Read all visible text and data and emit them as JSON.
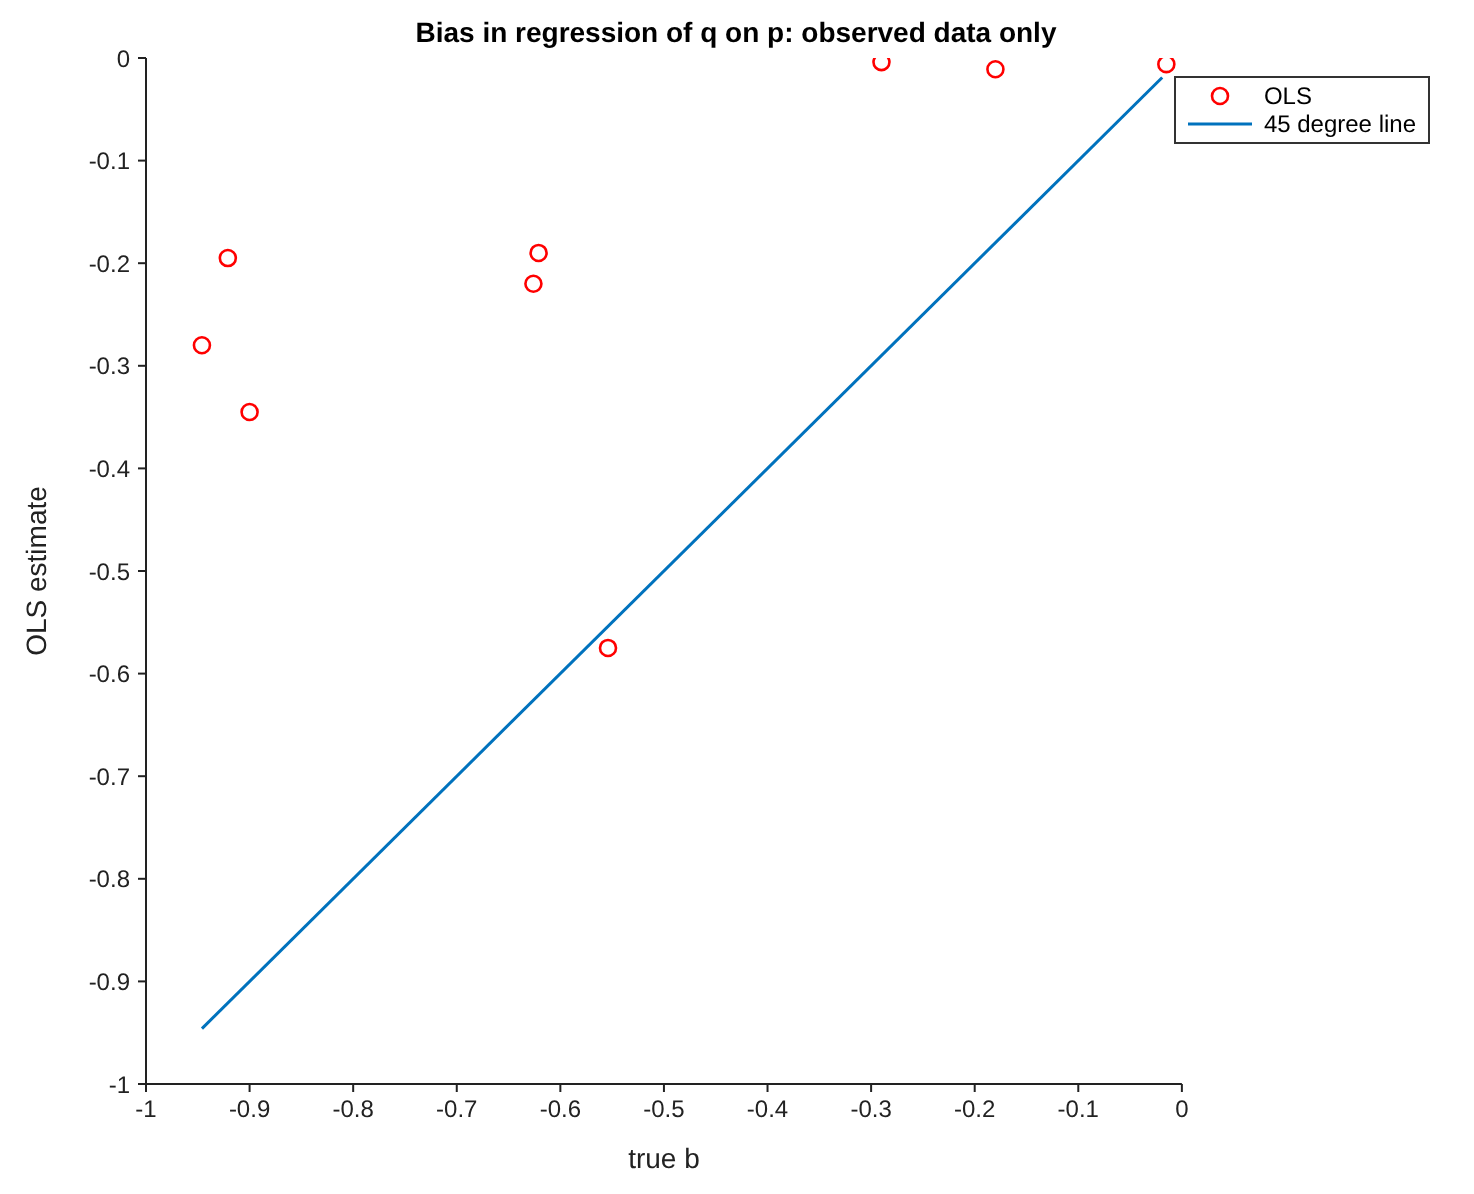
{
  "chart_data": {
    "type": "scatter",
    "title": "Bias in regression of q on p: observed data only",
    "xlabel": "true b",
    "ylabel": "OLS estimate",
    "xlim": [
      -1,
      0
    ],
    "xticks": [
      -1,
      -0.9,
      -0.8,
      -0.7,
      -0.6,
      -0.5,
      -0.4,
      -0.3,
      -0.2,
      -0.1,
      0
    ],
    "ylim": [
      -1,
      0
    ],
    "yticks": [
      -1,
      -0.9,
      -0.8,
      -0.7,
      -0.6,
      -0.5,
      -0.4,
      -0.3,
      -0.2,
      -0.1,
      0
    ],
    "grid": false,
    "legend": "top right",
    "series": [
      {
        "name": "OLS",
        "type": "scatter",
        "marker": "circle",
        "color": "#ff0000",
        "x": [
          -0.946,
          -0.921,
          -0.9,
          -0.621,
          -0.626,
          -0.554,
          -0.29,
          -0.18,
          -0.015
        ],
        "values": [
          -0.28,
          -0.195,
          -0.345,
          -0.19,
          -0.22,
          -0.575,
          -0.004,
          -0.011,
          -0.006
        ]
      },
      {
        "name": "45 degree line",
        "type": "line",
        "marker": "none",
        "line_style": "solid",
        "color": "#0072bd",
        "x": [
          -0.946,
          -0.019
        ],
        "values": [
          -0.946,
          -0.019
        ]
      }
    ]
  }
}
